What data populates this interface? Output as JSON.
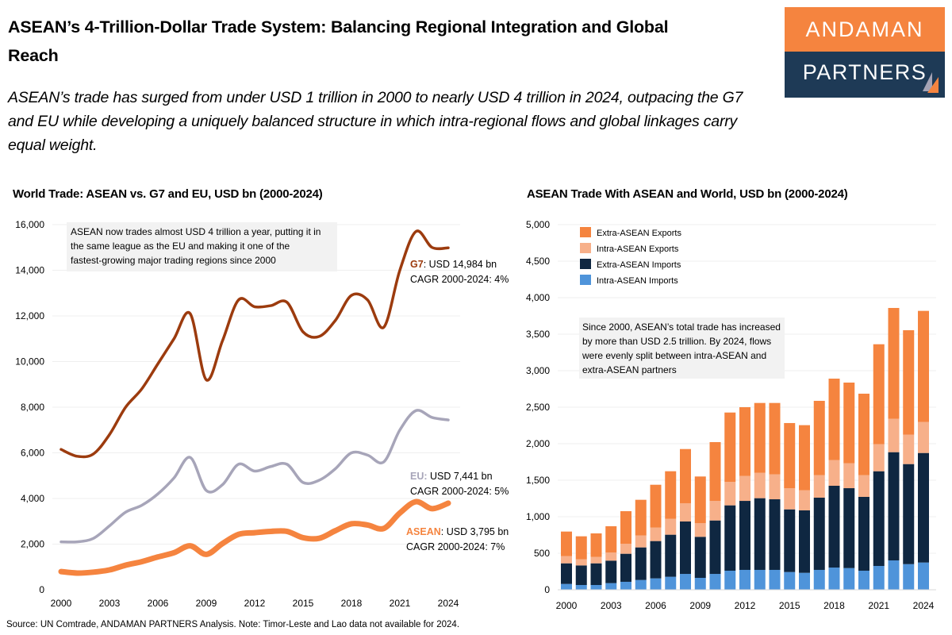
{
  "header": {
    "title": "ASEAN’s 4-Trillion-Dollar Trade System: Balancing Regional Integration and Global Reach",
    "subtitle": "ASEAN’s trade has surged from under USD 1 trillion in 2000 to nearly USD 4 trillion in 2024, outpacing the G7 and EU while developing a uniquely balanced structure in which intra-regional flows and global linkages carry equal weight."
  },
  "logo": {
    "line1": "ANDAMAN",
    "line2": "PARTNERS",
    "colors": {
      "orange": "#f5843f",
      "navy": "#1e3a56"
    }
  },
  "source": "Source: UN Comtrade, ANDAMAN PARTNERS Analysis. Note: Timor-Leste and Lao data not available for 2024.",
  "chart_data": [
    {
      "type": "line",
      "title": "World Trade: ASEAN vs. G7 and EU, USD bn (2000-2024)",
      "x": [
        2000,
        2001,
        2002,
        2003,
        2004,
        2005,
        2006,
        2007,
        2008,
        2009,
        2010,
        2011,
        2012,
        2013,
        2014,
        2015,
        2016,
        2017,
        2018,
        2019,
        2020,
        2021,
        2022,
        2023,
        2024
      ],
      "xticks": [
        "2000",
        "2003",
        "2006",
        "2009",
        "2012",
        "2015",
        "2018",
        "2021",
        "2024"
      ],
      "yticks": [
        "0",
        "2,000",
        "4,000",
        "6,000",
        "8,000",
        "10,000",
        "12,000",
        "14,000",
        "16,000"
      ],
      "ylim": [
        0,
        16000
      ],
      "grid": true,
      "annotation": "ASEAN now trades almost USD 4 trillion a year, putting it in the same league as the EU and making it one of the fastest-growing major trading regions since 2000",
      "series": [
        {
          "name": "G7",
          "color": "#9c3b0e",
          "label_value": ": USD 14,984 bn",
          "label_cagr": "CAGR 2000-2024: 4%",
          "values": [
            6150,
            5850,
            5950,
            6800,
            8000,
            8800,
            9900,
            11000,
            12100,
            9200,
            10900,
            12700,
            12400,
            12450,
            12600,
            11300,
            11100,
            11800,
            12900,
            12700,
            11500,
            14000,
            15700,
            15000,
            14984
          ]
        },
        {
          "name": "EU:",
          "color": "#a7a5b9",
          "label_value": " USD 7,441 bn",
          "label_cagr": "CAGR 2000-2024: 5%",
          "values": [
            2100,
            2100,
            2250,
            2800,
            3400,
            3700,
            4200,
            4900,
            5800,
            4350,
            4600,
            5500,
            5200,
            5400,
            5500,
            4700,
            4800,
            5300,
            6000,
            5900,
            5600,
            7000,
            7850,
            7550,
            7441
          ]
        },
        {
          "name": "ASEAN",
          "color": "#f5843f",
          "label_value": ": USD 3,795 bn",
          "label_cagr": "CAGR 2000-2024: 7%",
          "values": [
            797,
            732,
            772,
            870,
            1076,
            1232,
            1438,
            1623,
            1927,
            1551,
            2022,
            2427,
            2500,
            2558,
            2558,
            2283,
            2254,
            2587,
            2891,
            2837,
            2685,
            3362,
            3859,
            3554,
            3795
          ]
        }
      ]
    },
    {
      "type": "bar",
      "stacked": true,
      "title": "ASEAN Trade With ASEAN and World, USD bn (2000-2024)",
      "categories": [
        2000,
        2001,
        2002,
        2003,
        2004,
        2005,
        2006,
        2007,
        2008,
        2009,
        2010,
        2011,
        2012,
        2013,
        2014,
        2015,
        2016,
        2017,
        2018,
        2019,
        2020,
        2021,
        2022,
        2023,
        2024
      ],
      "xticks": [
        "2000",
        "2003",
        "2006",
        "2009",
        "2012",
        "2015",
        "2018",
        "2021",
        "2024"
      ],
      "yticks": [
        "0",
        "500",
        "1,000",
        "1,500",
        "2,000",
        "2,500",
        "3,000",
        "3,500",
        "4,000",
        "4,500",
        "5,000"
      ],
      "ylim": [
        0,
        5000
      ],
      "grid": true,
      "legend_position": "top-left",
      "annotation": "Since 2000, ASEAN’s total trade has increased by more than USD 2.5 trillion. By 2024, flows were evenly split between intra-ASEAN and extra-ASEAN partners",
      "series": [
        {
          "name": "Intra-ASEAN Imports",
          "color": "#4f94da",
          "values": [
            80,
            65,
            65,
            91,
            109,
            134,
            156,
            178,
            217,
            163,
            217,
            261,
            272,
            272,
            272,
            243,
            232,
            272,
            304,
            297,
            261,
            326,
            402,
            351,
            373
          ]
        },
        {
          "name": "Extra-ASEAN Imports",
          "color": "#0f2741",
          "values": [
            282,
            268,
            297,
            308,
            384,
            446,
            511,
            576,
            718,
            562,
            732,
            895,
            945,
            982,
            967,
            858,
            855,
            989,
            1120,
            1094,
            1011,
            1297,
            1482,
            1370,
            1500
          ]
        },
        {
          "name": "Intra-ASEAN Exports",
          "color": "#f7b08a",
          "values": [
            98,
            84,
            87,
            112,
            137,
            163,
            184,
            217,
            250,
            188,
            268,
            322,
            341,
            347,
            341,
            290,
            275,
            308,
            351,
            341,
            297,
            370,
            457,
            402,
            424
          ]
        },
        {
          "name": "Extra-ASEAN Exports",
          "color": "#f5843f",
          "values": [
            337,
            315,
            323,
            359,
            446,
            489,
            587,
            652,
            742,
            638,
            805,
            949,
            942,
            957,
            978,
            892,
            892,
            1018,
            1116,
            1105,
            1116,
            1369,
            1518,
            1431,
            1522
          ]
        }
      ],
      "legend_order": [
        "Extra-ASEAN Exports",
        "Intra-ASEAN Exports",
        "Extra-ASEAN Imports",
        "Intra-ASEAN Imports"
      ]
    }
  ]
}
